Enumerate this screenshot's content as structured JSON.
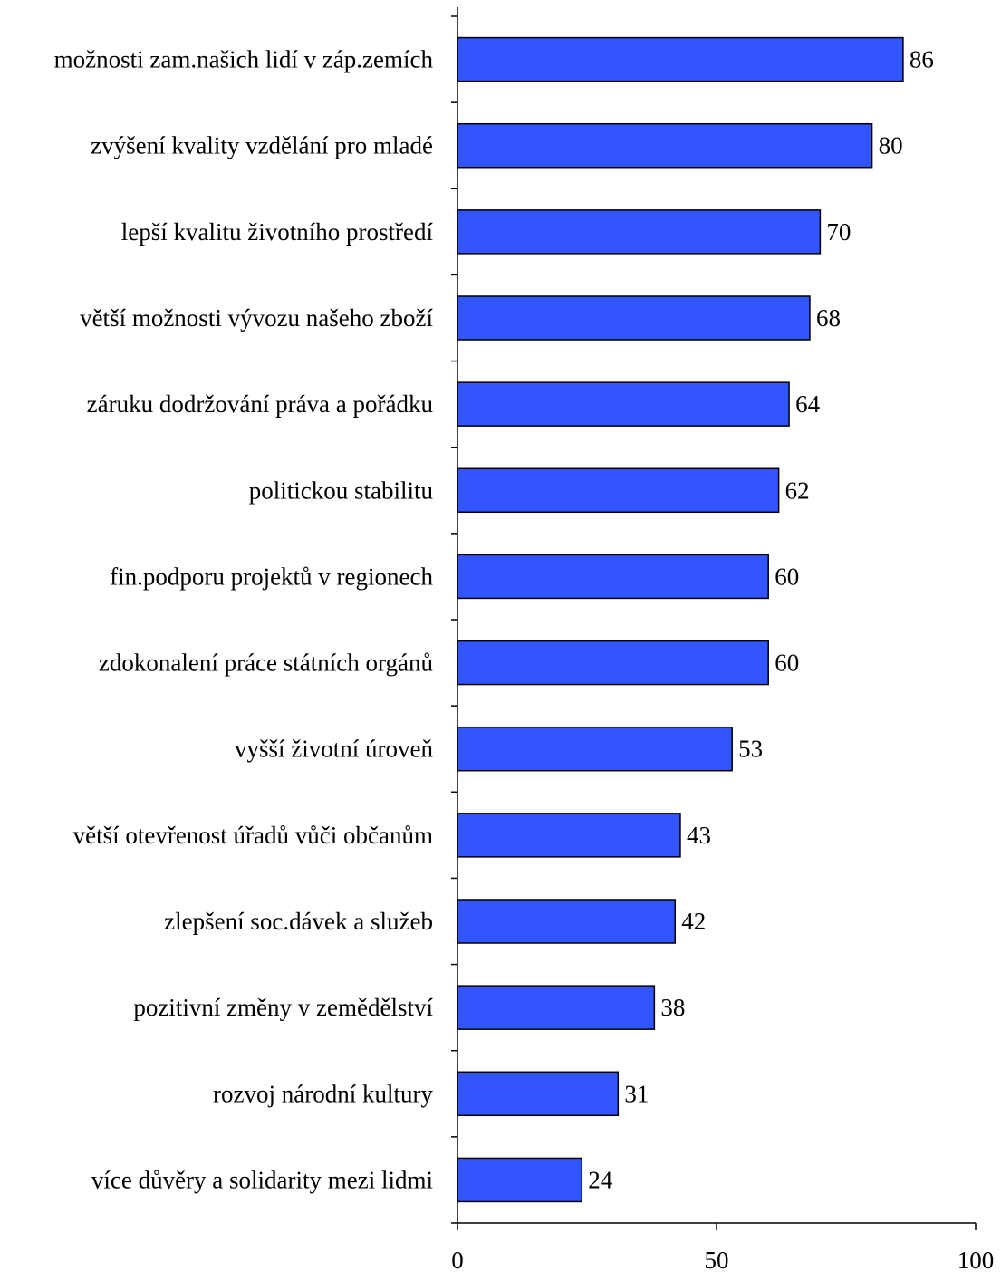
{
  "chart_data": {
    "type": "bar",
    "orientation": "horizontal",
    "categories": [
      "možnosti zam.našich lidí v záp.zemích",
      "zvýšení kvality vzdělání pro mladé",
      "lepší kvalitu životního prostředí",
      "větší možnosti vývozu našeho zboží",
      "záruku dodržování práva a pořádku",
      "politickou stabilitu",
      "fin.podporu projektů v regionech",
      "zdokonalení práce státních orgánů",
      "vyšší životní úroveň",
      "větší otevřenost úřadů vůči občanům",
      "zlepšení soc.dávek a služeb",
      "pozitivní změny v zemědělství",
      "rozvoj národní kultury",
      "více důvěry a solidarity mezi lidmi"
    ],
    "values": [
      86,
      80,
      70,
      68,
      64,
      62,
      60,
      60,
      53,
      43,
      42,
      38,
      31,
      24
    ],
    "data_labels": [
      "86",
      "80",
      "70",
      "68",
      "64",
      "62",
      "60",
      "60",
      "53",
      "43",
      "42",
      "38",
      "31",
      "24"
    ],
    "xlim": [
      0,
      100
    ],
    "xticks": [
      0,
      50,
      100
    ],
    "xtick_labels": [
      "0",
      "50",
      "100"
    ],
    "grid": false,
    "bar_color": "#3355FF",
    "bar_edge_color": "#000000"
  }
}
